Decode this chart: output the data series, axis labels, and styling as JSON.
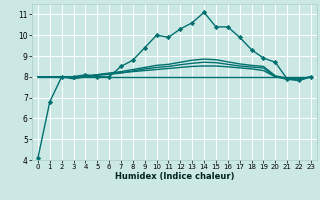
{
  "xlabel": "Humidex (Indice chaleur)",
  "xlim": [
    -0.5,
    23.5
  ],
  "ylim": [
    4,
    11.5
  ],
  "yticks": [
    4,
    5,
    6,
    7,
    8,
    9,
    10,
    11
  ],
  "xticks": [
    0,
    1,
    2,
    3,
    4,
    5,
    6,
    7,
    8,
    9,
    10,
    11,
    12,
    13,
    14,
    15,
    16,
    17,
    18,
    19,
    20,
    21,
    22,
    23
  ],
  "bg_color": "#cce8e4",
  "line_color": "#007070",
  "grid_color": "#ffffff",
  "lines": [
    {
      "x": [
        0,
        1,
        2,
        3,
        4,
        5,
        6,
        7,
        8,
        9,
        10,
        11,
        12,
        13,
        14,
        15,
        16,
        17,
        18,
        19,
        20,
        21,
        22,
        23
      ],
      "y": [
        4.1,
        6.8,
        8.0,
        8.0,
        8.1,
        8.0,
        8.0,
        8.5,
        8.8,
        9.4,
        10.0,
        9.9,
        10.3,
        10.6,
        11.1,
        10.4,
        10.4,
        9.9,
        9.3,
        8.9,
        8.7,
        7.9,
        7.85,
        8.0
      ],
      "marker": "D",
      "ms": 2.2,
      "lw": 1.0
    },
    {
      "x": [
        0,
        1,
        2,
        3,
        4,
        5,
        6,
        7,
        8,
        9,
        10,
        11,
        12,
        13,
        14,
        15,
        16,
        17,
        18,
        19,
        20,
        21,
        22,
        23
      ],
      "y": [
        8.0,
        8.0,
        8.0,
        8.0,
        8.0,
        8.0,
        8.0,
        8.0,
        8.0,
        8.0,
        8.0,
        8.0,
        8.0,
        8.0,
        8.0,
        8.0,
        8.0,
        8.0,
        8.0,
        8.0,
        8.0,
        8.0,
        8.0,
        8.0
      ],
      "marker": null,
      "ms": 0,
      "lw": 1.0
    },
    {
      "x": [
        0,
        1,
        2,
        3,
        4,
        5,
        6,
        7,
        8,
        9,
        10,
        11,
        12,
        13,
        14,
        15,
        16,
        17,
        18,
        19,
        20,
        21,
        22,
        23
      ],
      "y": [
        8.0,
        8.0,
        8.0,
        8.0,
        8.05,
        8.1,
        8.15,
        8.2,
        8.25,
        8.3,
        8.35,
        8.4,
        8.45,
        8.5,
        8.52,
        8.52,
        8.48,
        8.43,
        8.38,
        8.3,
        8.0,
        7.95,
        7.9,
        8.0
      ],
      "marker": null,
      "ms": 0,
      "lw": 1.0
    },
    {
      "x": [
        0,
        1,
        2,
        3,
        4,
        5,
        6,
        7,
        8,
        9,
        10,
        11,
        12,
        13,
        14,
        15,
        16,
        17,
        18,
        19,
        20,
        21,
        22,
        23
      ],
      "y": [
        8.0,
        8.0,
        8.0,
        7.95,
        8.0,
        8.1,
        8.18,
        8.25,
        8.35,
        8.45,
        8.55,
        8.6,
        8.7,
        8.8,
        8.85,
        8.82,
        8.72,
        8.62,
        8.55,
        8.5,
        8.05,
        7.92,
        7.87,
        8.0
      ],
      "marker": null,
      "ms": 0,
      "lw": 1.0
    },
    {
      "x": [
        0,
        1,
        2,
        3,
        4,
        5,
        6,
        7,
        8,
        9,
        10,
        11,
        12,
        13,
        14,
        15,
        16,
        17,
        18,
        19,
        20,
        21,
        22,
        23
      ],
      "y": [
        8.0,
        8.0,
        8.0,
        7.9,
        8.0,
        8.07,
        8.12,
        8.18,
        8.28,
        8.38,
        8.45,
        8.5,
        8.58,
        8.65,
        8.7,
        8.68,
        8.6,
        8.52,
        8.47,
        8.42,
        8.0,
        7.88,
        7.82,
        8.0
      ],
      "marker": null,
      "ms": 0,
      "lw": 1.0
    }
  ]
}
